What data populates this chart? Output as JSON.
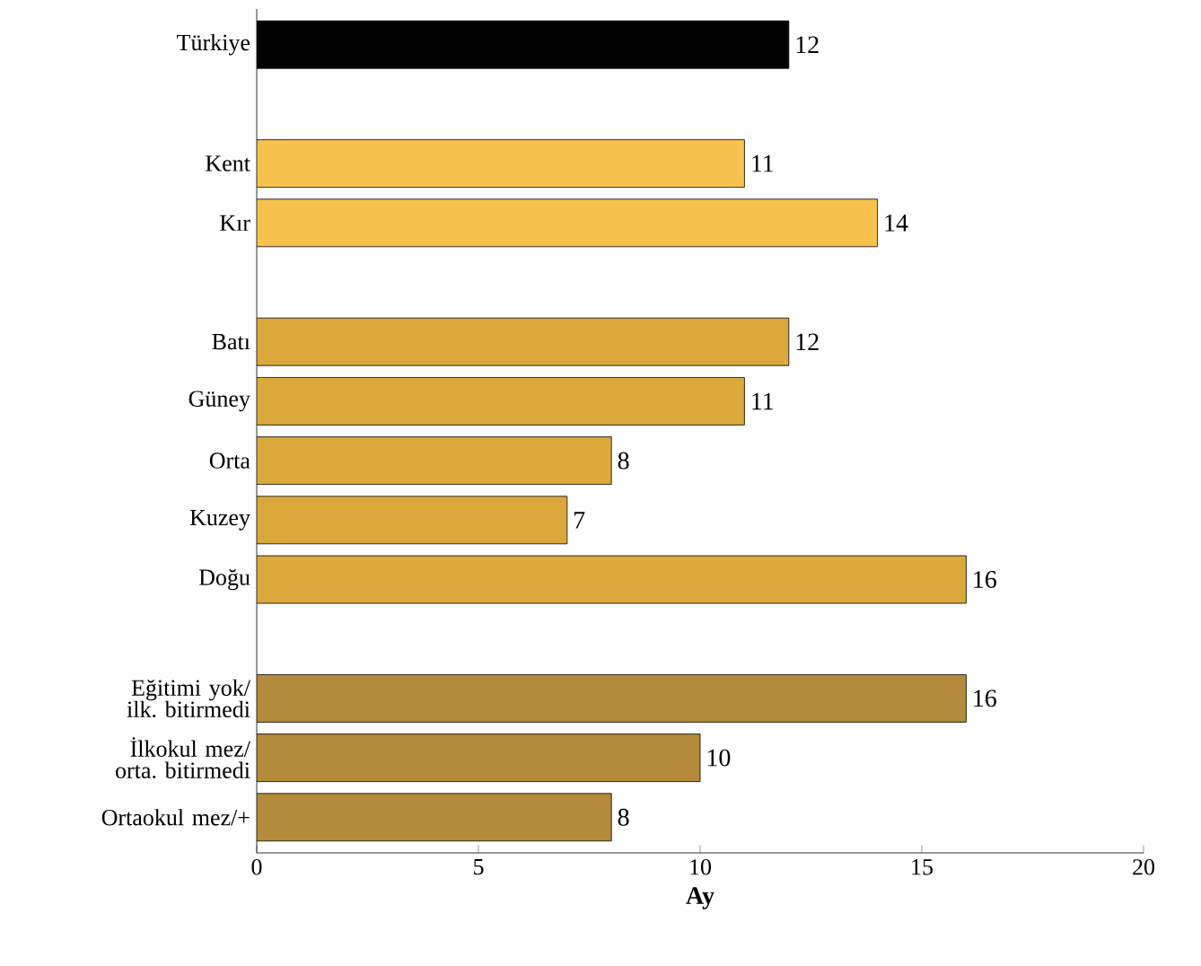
{
  "chart_data": {
    "type": "bar",
    "orientation": "horizontal",
    "xlabel": "Ay",
    "categories": [
      "Türkiye",
      null,
      "Kent",
      "Kır",
      null,
      "Batı",
      "Güney",
      "Orta",
      "Kuzey",
      "Doğu",
      null,
      "Eğitimi yok/ ilk. bitirmedi",
      "İlkokul mez/ orta. bitirmedi",
      "Ortaokul mez/+"
    ],
    "values": [
      12,
      null,
      11,
      14,
      null,
      12,
      11,
      8,
      7,
      16,
      null,
      16,
      10,
      8
    ],
    "colors": [
      "#000000",
      null,
      "#f7c34e",
      "#f7c34e",
      null,
      "#dba83c",
      "#dba83c",
      "#dba83c",
      "#dba83c",
      "#dba83c",
      null,
      "#b38b3a",
      "#b38b3a",
      "#b38b3a"
    ],
    "xlim": [
      0,
      20
    ],
    "xticks": [
      0,
      5,
      10,
      15,
      20
    ],
    "data_labels": true,
    "grid": false
  }
}
